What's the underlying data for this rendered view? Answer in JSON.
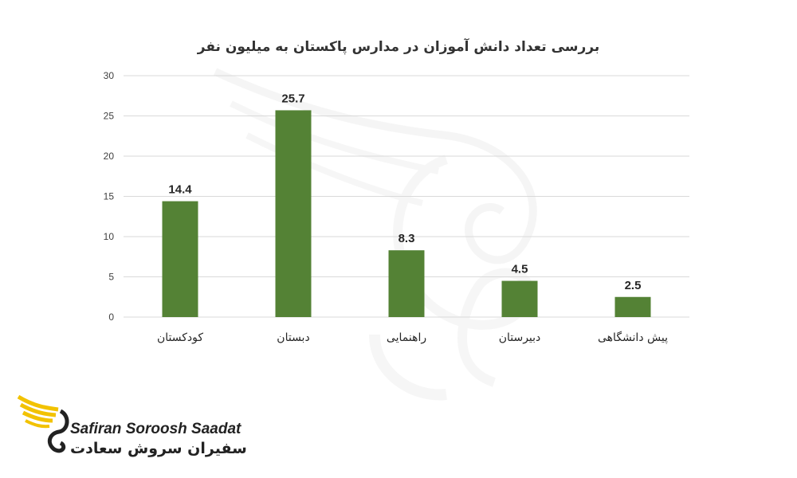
{
  "chart_data": {
    "type": "bar",
    "title": "بررسی تعداد دانش آموزان در مدارس پاکستان به میلیون نفر",
    "categories": [
      "کودکستان",
      "دبستان",
      "راهنمایی",
      "دبیرستان",
      "پیش دانشگاهی"
    ],
    "values": [
      14.4,
      25.7,
      8.3,
      4.5,
      2.5
    ],
    "value_labels": [
      "14.4",
      "25.7",
      "8.3",
      "4.5",
      "2.5"
    ],
    "ylim": [
      0,
      30
    ],
    "yticks": [
      0,
      5,
      10,
      15,
      20,
      25,
      30
    ],
    "xlabel": "",
    "ylabel": "",
    "grid": true,
    "bar_color": "#548235",
    "gridline_color": "#d9d9d9"
  },
  "brand": {
    "name_en": "Safiran Soroosh Saadat",
    "name_fa": "سفیران سروش سعادت",
    "accent": "#f2c200"
  }
}
